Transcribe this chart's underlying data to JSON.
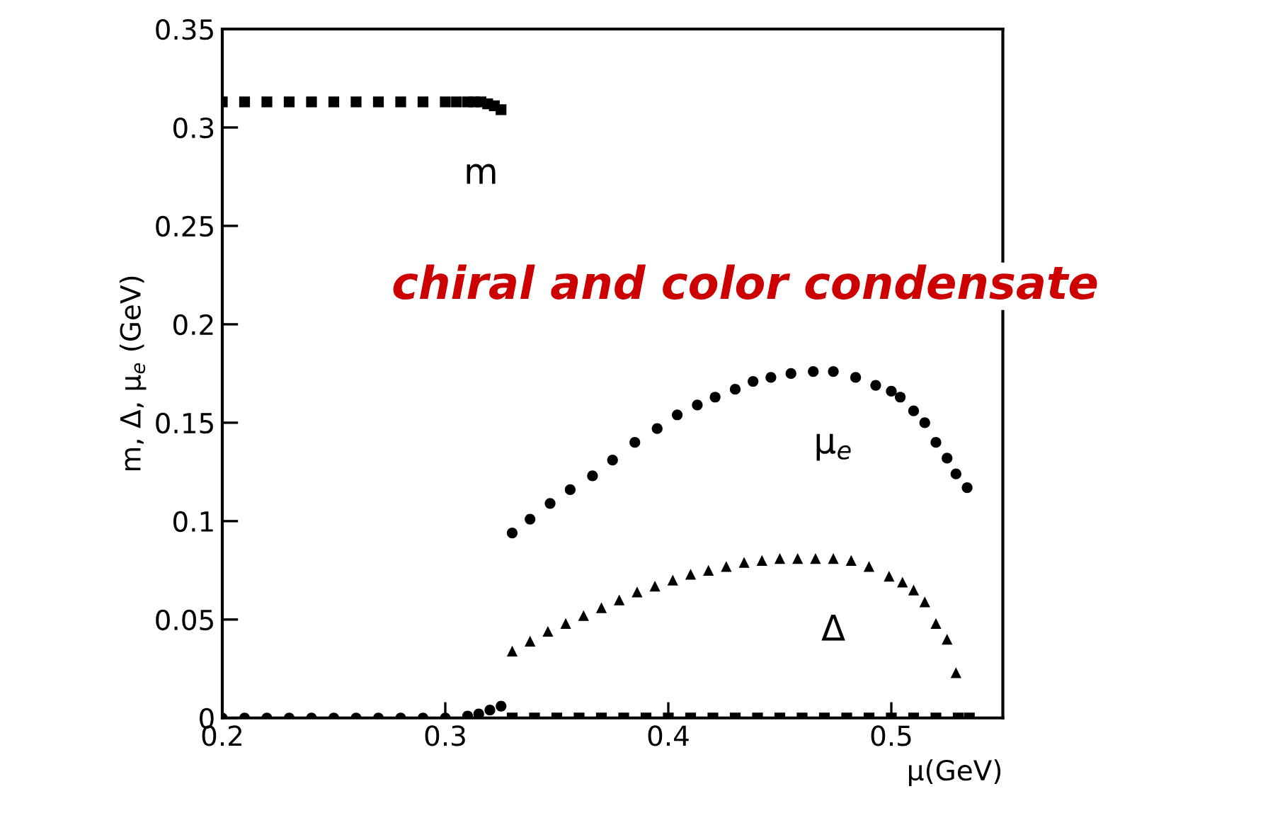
{
  "chart_data": {
    "type": "scatter",
    "xlabel": "μ(GeV)",
    "ylabel": "m, Δ, μ$_{e}$ (GeV)",
    "xlim": [
      0.2,
      0.55
    ],
    "xticks": [
      0.2,
      0.3,
      0.4,
      0.5
    ],
    "ylim": [
      0,
      0.35
    ],
    "yticks": [
      0,
      0.05,
      0.1,
      0.15,
      0.2,
      0.25,
      0.3,
      0.35
    ],
    "grid": false,
    "legend": false,
    "annotations": [
      "chiral and color condensate"
    ],
    "series": [
      {
        "name": "m",
        "color": "#000000",
        "marker": "square",
        "x": [
          0.2,
          0.21,
          0.22,
          0.23,
          0.24,
          0.25,
          0.26,
          0.27,
          0.28,
          0.29,
          0.3,
          0.305,
          0.31,
          0.313,
          0.316,
          0.319,
          0.322,
          0.325,
          0.33,
          0.34,
          0.35,
          0.36,
          0.37,
          0.38,
          0.39,
          0.4,
          0.41,
          0.42,
          0.43,
          0.44,
          0.45,
          0.46,
          0.47,
          0.48,
          0.49,
          0.5,
          0.51,
          0.52,
          0.53,
          0.535
        ],
        "values": [
          0.313,
          0.313,
          0.313,
          0.313,
          0.313,
          0.313,
          0.313,
          0.313,
          0.313,
          0.313,
          0.313,
          0.313,
          0.313,
          0.313,
          0.313,
          0.312,
          0.311,
          0.309,
          0,
          0,
          0,
          0,
          0,
          0,
          0,
          0,
          0,
          0,
          0,
          0,
          0,
          0,
          0,
          0,
          0,
          0,
          0,
          0,
          0,
          0
        ]
      },
      {
        "name": "μ$_{e}$",
        "color": "#000000",
        "marker": "circle",
        "x": [
          0.2,
          0.21,
          0.22,
          0.23,
          0.24,
          0.25,
          0.26,
          0.27,
          0.28,
          0.29,
          0.3,
          0.31,
          0.315,
          0.32,
          0.325,
          0.33,
          0.338,
          0.347,
          0.356,
          0.366,
          0.375,
          0.385,
          0.395,
          0.404,
          0.413,
          0.421,
          0.43,
          0.438,
          0.446,
          0.455,
          0.465,
          0.474,
          0.484,
          0.493,
          0.5,
          0.504,
          0.51,
          0.515,
          0.52,
          0.525,
          0.529,
          0.534
        ],
        "values": [
          0,
          0,
          0,
          0,
          0,
          0,
          0,
          0,
          0,
          0,
          0,
          0.001,
          0.002,
          0.004,
          0.006,
          0.094,
          0.101,
          0.109,
          0.116,
          0.123,
          0.131,
          0.14,
          0.147,
          0.154,
          0.159,
          0.163,
          0.167,
          0.171,
          0.173,
          0.175,
          0.176,
          0.176,
          0.173,
          0.169,
          0.166,
          0.163,
          0.156,
          0.15,
          0.14,
          0.132,
          0.124,
          0.117
        ]
      },
      {
        "name": "Δ",
        "color": "#000000",
        "marker": "triangle",
        "x": [
          0.33,
          0.338,
          0.346,
          0.354,
          0.362,
          0.37,
          0.378,
          0.386,
          0.394,
          0.402,
          0.41,
          0.418,
          0.426,
          0.434,
          0.442,
          0.45,
          0.458,
          0.466,
          0.474,
          0.482,
          0.49,
          0.499,
          0.505,
          0.51,
          0.515,
          0.52,
          0.525,
          0.529
        ],
        "values": [
          0.034,
          0.039,
          0.044,
          0.048,
          0.052,
          0.056,
          0.06,
          0.064,
          0.067,
          0.07,
          0.073,
          0.075,
          0.077,
          0.079,
          0.08,
          0.081,
          0.081,
          0.081,
          0.081,
          0.08,
          0.077,
          0.072,
          0.069,
          0.065,
          0.059,
          0.048,
          0.04,
          0.023
        ]
      }
    ]
  }
}
